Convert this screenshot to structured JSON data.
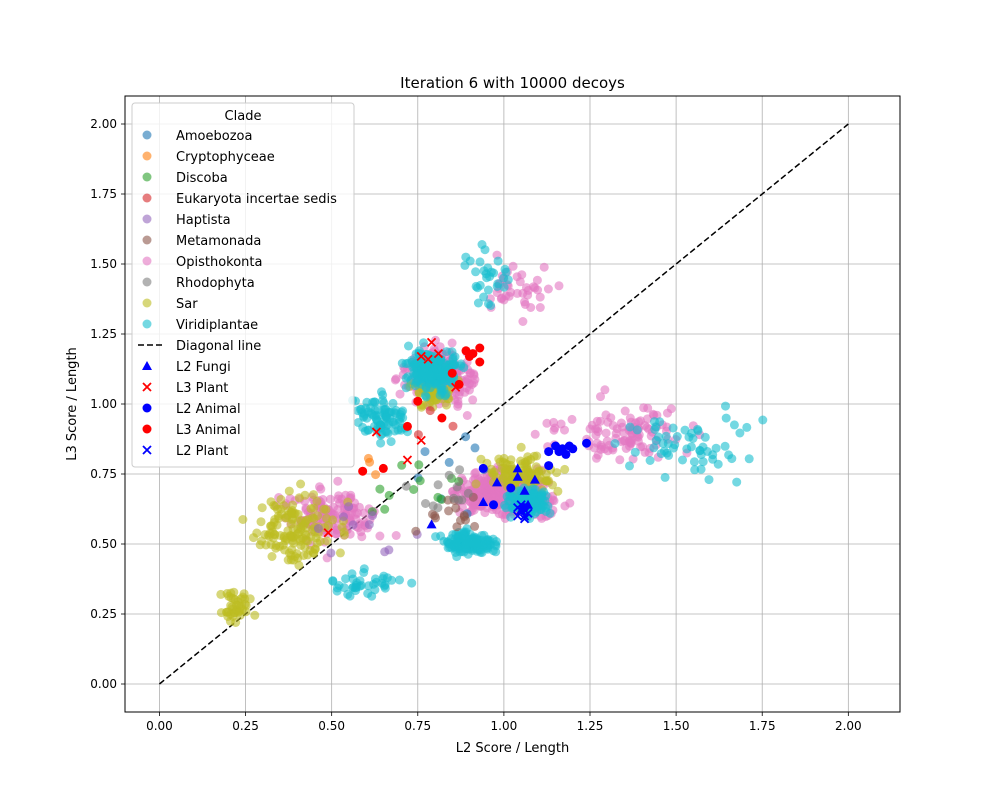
{
  "chart_data": {
    "type": "scatter",
    "title": "Iteration 6 with 10000 decoys",
    "xlabel": "L2 Score / Length",
    "ylabel": "L3 Score / Length",
    "xlim": [
      -0.1,
      2.15
    ],
    "ylim": [
      -0.1,
      2.1
    ],
    "xticks": [
      "0.00",
      "0.25",
      "0.50",
      "0.75",
      "1.00",
      "1.25",
      "1.50",
      "1.75",
      "2.00"
    ],
    "yticks": [
      "0.00",
      "0.25",
      "0.50",
      "0.75",
      "1.00",
      "1.25",
      "1.50",
      "1.75",
      "2.00"
    ],
    "grid": true,
    "legend_position": "upper-left",
    "legend_title": "Clade",
    "clades": [
      {
        "name": "Amoebozoa",
        "color": "#1f77b4"
      },
      {
        "name": "Cryptophyceae",
        "color": "#ff7f0e"
      },
      {
        "name": "Discoba",
        "color": "#2ca02c"
      },
      {
        "name": "Eukaryota incertae sedis",
        "color": "#d62728"
      },
      {
        "name": "Haptista",
        "color": "#9467bd"
      },
      {
        "name": "Metamonada",
        "color": "#8c564b"
      },
      {
        "name": "Opisthokonta",
        "color": "#e377c2"
      },
      {
        "name": "Rhodophyta",
        "color": "#7f7f7f"
      },
      {
        "name": "Sar",
        "color": "#bcbd22"
      },
      {
        "name": "Viridiplantae",
        "color": "#17becf"
      }
    ],
    "diagonal_line": {
      "name": "Diagonal line",
      "x": [
        0,
        2
      ],
      "y": [
        0,
        2
      ]
    },
    "highlight_series": [
      {
        "name": "L2 Fungi",
        "marker": "triangle",
        "color": "#0000ff",
        "points": [
          [
            0.79,
            0.57
          ],
          [
            0.94,
            0.65
          ],
          [
            0.98,
            0.72
          ],
          [
            1.04,
            0.77
          ],
          [
            1.04,
            0.74
          ],
          [
            1.06,
            0.69
          ],
          [
            1.07,
            0.64
          ],
          [
            1.05,
            0.62
          ],
          [
            1.09,
            0.73
          ]
        ]
      },
      {
        "name": "L3 Plant",
        "marker": "x",
        "color": "#ff0000",
        "points": [
          [
            0.49,
            0.54
          ],
          [
            0.63,
            0.9
          ],
          [
            0.72,
            0.8
          ],
          [
            0.76,
            1.17
          ],
          [
            0.78,
            1.16
          ],
          [
            0.79,
            1.22
          ],
          [
            0.81,
            1.18
          ],
          [
            0.76,
            0.87
          ],
          [
            0.86,
            1.06
          ]
        ]
      },
      {
        "name": "L2 Animal",
        "marker": "circle",
        "color": "#0000ff",
        "points": [
          [
            0.97,
            0.64
          ],
          [
            1.02,
            0.7
          ],
          [
            0.94,
            0.77
          ],
          [
            1.13,
            0.78
          ],
          [
            1.13,
            0.83
          ],
          [
            1.15,
            0.85
          ],
          [
            1.16,
            0.83
          ],
          [
            1.17,
            0.84
          ],
          [
            1.18,
            0.82
          ],
          [
            1.19,
            0.85
          ],
          [
            1.2,
            0.84
          ],
          [
            1.24,
            0.86
          ],
          [
            1.06,
            0.63
          ]
        ]
      },
      {
        "name": "L3 Animal",
        "marker": "circle",
        "color": "#ff0000",
        "points": [
          [
            0.59,
            0.76
          ],
          [
            0.65,
            0.77
          ],
          [
            0.72,
            0.92
          ],
          [
            0.75,
            1.01
          ],
          [
            0.82,
            0.95
          ],
          [
            0.85,
            1.11
          ],
          [
            0.87,
            1.07
          ],
          [
            0.89,
            1.19
          ],
          [
            0.9,
            1.17
          ],
          [
            0.91,
            1.18
          ],
          [
            0.93,
            1.15
          ],
          [
            0.93,
            1.2
          ]
        ]
      },
      {
        "name": "L2 Plant",
        "marker": "x",
        "color": "#0000ff",
        "points": [
          [
            1.04,
            0.6
          ],
          [
            1.05,
            0.62
          ],
          [
            1.06,
            0.59
          ],
          [
            1.05,
            0.64
          ],
          [
            1.07,
            0.61
          ],
          [
            1.06,
            0.6
          ],
          [
            1.04,
            0.63
          ]
        ]
      }
    ],
    "clusters": [
      {
        "clade": "Opisthokonta",
        "cx": 1.0,
        "cy": 0.68,
        "sx": 0.14,
        "sy": 0.07,
        "n": 420
      },
      {
        "clade": "Opisthokonta",
        "cx": 0.82,
        "cy": 1.1,
        "sx": 0.1,
        "sy": 0.09,
        "n": 220
      },
      {
        "clade": "Opisthokonta",
        "cx": 0.5,
        "cy": 0.6,
        "sx": 0.12,
        "sy": 0.1,
        "n": 140
      },
      {
        "clade": "Opisthokonta",
        "cx": 1.35,
        "cy": 0.9,
        "sx": 0.2,
        "sy": 0.1,
        "n": 110
      },
      {
        "clade": "Opisthokonta",
        "cx": 1.05,
        "cy": 1.4,
        "sx": 0.12,
        "sy": 0.1,
        "n": 40
      },
      {
        "clade": "Viridiplantae",
        "cx": 0.8,
        "cy": 1.12,
        "sx": 0.08,
        "sy": 0.07,
        "n": 200
      },
      {
        "clade": "Viridiplantae",
        "cx": 0.9,
        "cy": 0.5,
        "sx": 0.07,
        "sy": 0.04,
        "n": 150
      },
      {
        "clade": "Viridiplantae",
        "cx": 1.07,
        "cy": 0.65,
        "sx": 0.06,
        "sy": 0.05,
        "n": 120
      },
      {
        "clade": "Viridiplantae",
        "cx": 0.65,
        "cy": 0.95,
        "sx": 0.07,
        "sy": 0.08,
        "n": 90
      },
      {
        "clade": "Viridiplantae",
        "cx": 1.55,
        "cy": 0.85,
        "sx": 0.18,
        "sy": 0.12,
        "n": 60
      },
      {
        "clade": "Viridiplantae",
        "cx": 0.6,
        "cy": 0.35,
        "sx": 0.1,
        "sy": 0.05,
        "n": 40
      },
      {
        "clade": "Viridiplantae",
        "cx": 0.95,
        "cy": 1.45,
        "sx": 0.07,
        "sy": 0.09,
        "n": 30
      },
      {
        "clade": "Sar",
        "cx": 0.4,
        "cy": 0.55,
        "sx": 0.12,
        "sy": 0.13,
        "n": 140
      },
      {
        "clade": "Sar",
        "cx": 1.05,
        "cy": 0.75,
        "sx": 0.1,
        "sy": 0.06,
        "n": 100
      },
      {
        "clade": "Sar",
        "cx": 0.8,
        "cy": 1.05,
        "sx": 0.06,
        "sy": 0.06,
        "n": 60
      },
      {
        "clade": "Sar",
        "cx": 0.22,
        "cy": 0.28,
        "sx": 0.05,
        "sy": 0.06,
        "n": 40
      },
      {
        "clade": "Amoebozoa",
        "cx": 0.85,
        "cy": 0.75,
        "sx": 0.15,
        "sy": 0.15,
        "n": 8
      },
      {
        "clade": "Cryptophyceae",
        "cx": 0.6,
        "cy": 0.8,
        "sx": 0.05,
        "sy": 0.05,
        "n": 3
      },
      {
        "clade": "Discoba",
        "cx": 0.75,
        "cy": 0.7,
        "sx": 0.15,
        "sy": 0.1,
        "n": 12
      },
      {
        "clade": "Eukaryota incertae sedis",
        "cx": 0.8,
        "cy": 0.9,
        "sx": 0.1,
        "sy": 0.1,
        "n": 3
      },
      {
        "clade": "Haptista",
        "cx": 0.6,
        "cy": 0.55,
        "sx": 0.12,
        "sy": 0.1,
        "n": 10
      },
      {
        "clade": "Metamonada",
        "cx": 0.85,
        "cy": 0.6,
        "sx": 0.12,
        "sy": 0.1,
        "n": 15
      },
      {
        "clade": "Rhodophyta",
        "cx": 0.85,
        "cy": 0.7,
        "sx": 0.1,
        "sy": 0.1,
        "n": 12
      }
    ]
  }
}
